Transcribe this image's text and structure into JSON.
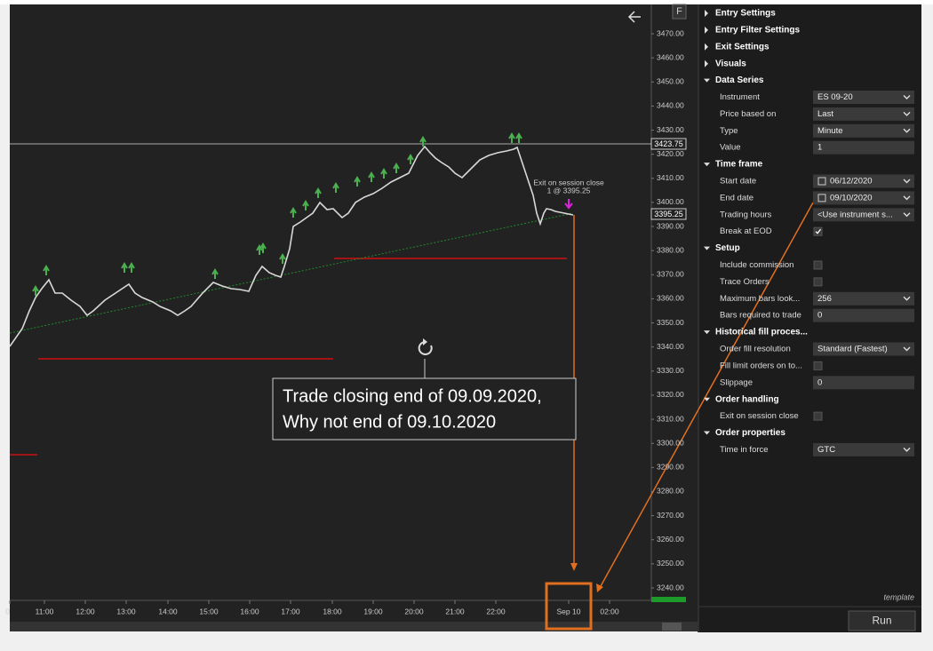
{
  "chart": {
    "button": "F",
    "price_labels": [
      "3470.00",
      "3460.00",
      "3450.00",
      "3440.00",
      "3430.00",
      "3420.00",
      "3410.00",
      "3400.00",
      "3390.00",
      "3380.00",
      "3370.00",
      "3360.00",
      "3350.00",
      "3340.00",
      "3330.00",
      "3320.00",
      "3310.00",
      "3300.00",
      "3290.00",
      "3280.00",
      "3270.00",
      "3260.00",
      "3250.00",
      "3240.00"
    ],
    "time_labels": [
      "0",
      "11:00",
      "12:00",
      "13:00",
      "14:00",
      "15:00",
      "16:00",
      "17:00",
      "18:00",
      "19:00",
      "20:00",
      "21:00",
      "22:00",
      "Sep 10",
      "02:00"
    ],
    "last_price": "3423.75",
    "current_price": "3395.25",
    "exit_label": [
      "Exit on session close",
      "1 @ 3395.25"
    ]
  },
  "callout": {
    "lines": [
      "Trade closing end of 09.09.2020,",
      "Why not end of 09.10.2020"
    ]
  },
  "panel": {
    "sections": [
      {
        "title": "Entry Settings"
      },
      {
        "title": "Entry Filter Settings"
      },
      {
        "title": "Exit Settings"
      },
      {
        "title": "Visuals"
      },
      {
        "title": "Data Series",
        "rows": [
          {
            "label": "Instrument",
            "value": "ES 09-20",
            "dropdown": true
          },
          {
            "label": "Price based on",
            "value": "Last",
            "dropdown": true
          },
          {
            "label": "Type",
            "value": "Minute",
            "dropdown": true
          },
          {
            "label": "Value",
            "value": "1"
          }
        ]
      },
      {
        "title": "Time frame",
        "rows": [
          {
            "label": "Start date",
            "value": "06/12/2020",
            "dropdown": true,
            "calendar": true
          },
          {
            "label": "End date",
            "value": "09/10/2020",
            "dropdown": true,
            "calendar": true
          },
          {
            "label": "Trading hours",
            "value": "<Use instrument s...",
            "dropdown": true
          },
          {
            "label": "Break at EOD",
            "checked": true
          }
        ]
      },
      {
        "title": "Setup",
        "rows": [
          {
            "label": "Include commission",
            "checked": false
          },
          {
            "label": "Trace Orders",
            "checked": false
          },
          {
            "label": "Maximum bars look...",
            "value": "256",
            "dropdown": true
          },
          {
            "label": "Bars required to trade",
            "value": "0"
          }
        ]
      },
      {
        "title": "Historical fill proces...",
        "rows": [
          {
            "label": "Order fill resolution",
            "value": "Standard (Fastest)",
            "dropdown": true
          },
          {
            "label": "Fill limit orders on to...",
            "checked": false
          },
          {
            "label": "Slippage",
            "value": "0"
          }
        ]
      },
      {
        "title": "Order handling",
        "rows": [
          {
            "label": "Exit on session close",
            "checked": false
          }
        ]
      },
      {
        "title": "Order properties",
        "rows": [
          {
            "label": "Time in force",
            "value": "GTC",
            "dropdown": true
          }
        ]
      }
    ],
    "footer": "template",
    "button": "Run"
  }
}
